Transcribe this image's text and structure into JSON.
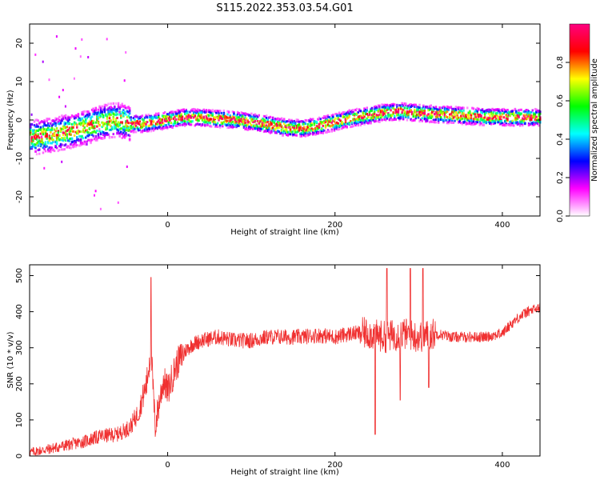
{
  "title": "S115.2022.353.03.54.G01",
  "chart_data": [
    {
      "type": "heatmap",
      "xlabel": "Height of straight line (km)",
      "ylabel": "Frequency (Hz)",
      "xlim": [
        -165,
        445
      ],
      "ylim": [
        -25,
        25
      ],
      "xticks": [
        0,
        200,
        400
      ],
      "yticks": [
        20,
        10,
        0,
        -10,
        -20
      ],
      "colorbar": {
        "label": "Normalized spectral amplitude",
        "range": [
          0,
          1
        ],
        "ticks": [
          0.0,
          0.2,
          0.4,
          0.6,
          0.8
        ],
        "tick_labels": [
          "0.0",
          "0.2",
          "0.4",
          "0.6",
          "0.8"
        ],
        "colors": [
          "#ffffff",
          "#ff00ff",
          "#0000ff",
          "#00ffff",
          "#00ff00",
          "#ffff00",
          "#ff0000",
          "#ff0080"
        ]
      },
      "ridge_center_hz": {
        "x": [
          -160,
          -140,
          -120,
          -100,
          -80,
          -60,
          -45,
          -30,
          0,
          20,
          40,
          60,
          80,
          100,
          120,
          140,
          160,
          180,
          200,
          220,
          240,
          260,
          280,
          300,
          320,
          340,
          360,
          380,
          400,
          420,
          445
        ],
        "y": [
          -4.5,
          -4,
          -3,
          -2,
          -0.5,
          0,
          -1,
          -1,
          0,
          0.7,
          0.6,
          0.3,
          0,
          -0.5,
          -1.2,
          -2,
          -2.2,
          -1.5,
          -0.5,
          0.5,
          1.2,
          2,
          2.2,
          1.8,
          1.5,
          1.3,
          1,
          0.8,
          0.7,
          0.7,
          0.7
        ]
      }
    },
    {
      "type": "line",
      "xlabel": "Height of straight line (km)",
      "ylabel": "SNR (10 * v/v)",
      "xlim": [
        -165,
        445
      ],
      "ylim": [
        0,
        530
      ],
      "xticks": [
        0,
        200,
        400
      ],
      "yticks": [
        0,
        100,
        200,
        300,
        400,
        500
      ],
      "color": "#f03030",
      "series": [
        {
          "x": [
            -165,
            -140,
            -120,
            -100,
            -80,
            -60,
            -45,
            -35,
            -25,
            -20,
            -15,
            -10,
            -5,
            0,
            10,
            20,
            30,
            40,
            60,
            80,
            100,
            120,
            140,
            160,
            180,
            200,
            220,
            240,
            260,
            280,
            300,
            320,
            340,
            360,
            380,
            400,
            410,
            420,
            430,
            445
          ],
          "y": [
            10,
            20,
            30,
            40,
            55,
            60,
            80,
            120,
            200,
            300,
            80,
            150,
            210,
            180,
            250,
            290,
            310,
            320,
            330,
            320,
            320,
            330,
            330,
            330,
            335,
            330,
            340,
            340,
            330,
            340,
            330,
            340,
            330,
            330,
            330,
            340,
            365,
            385,
            400,
            410
          ],
          "spikes": [
            {
              "x": -20,
              "y": 495
            },
            {
              "x": 248,
              "y": 60
            },
            {
              "x": 262,
              "y": 520
            },
            {
              "x": 278,
              "y": 155
            },
            {
              "x": 290,
              "y": 520
            },
            {
              "x": 305,
              "y": 520
            },
            {
              "x": 312,
              "y": 190
            }
          ]
        }
      ]
    }
  ]
}
